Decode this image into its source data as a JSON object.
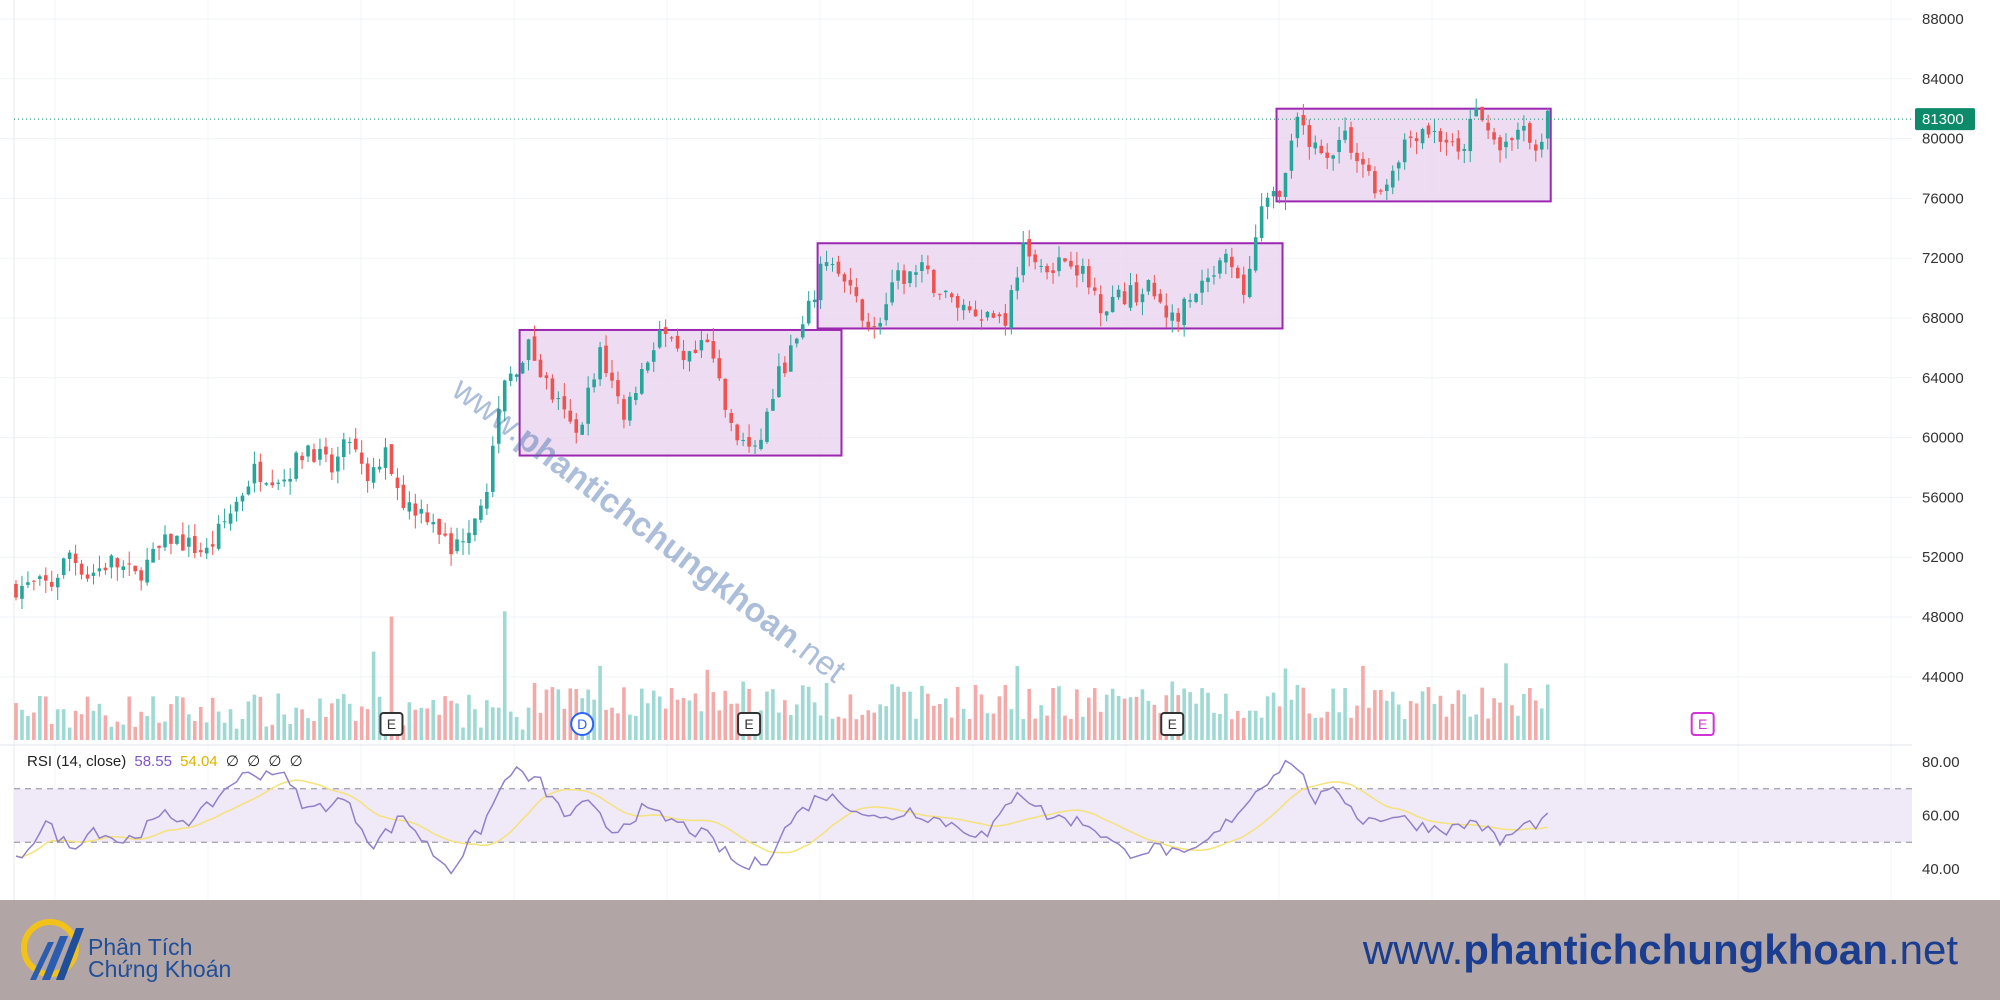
{
  "chart_data": {
    "type": "candlestick",
    "price_axis": {
      "ylim": [
        36000,
        89000
      ],
      "ticks": [
        88000,
        84000,
        80000,
        76000,
        72000,
        68000,
        64000,
        60000,
        56000,
        52000,
        48000,
        44000
      ]
    },
    "last_price": {
      "value": 81300,
      "label": "81300"
    },
    "rsi_axis": {
      "ylim": [
        33,
        84
      ],
      "ticks": [
        "80.00",
        "60.00",
        "40.00"
      ],
      "upper_band": 70,
      "lower_band": 50
    },
    "rsi_legend": {
      "name": "RSI (14, close)",
      "value": "58.55",
      "ma_value": "54.04",
      "extras": [
        "∅",
        "∅",
        "∅",
        "∅"
      ]
    },
    "event_markers": [
      {
        "label": "E",
        "bar": 63,
        "kind": "earnings"
      },
      {
        "label": "D",
        "bar": 95,
        "kind": "dividend"
      },
      {
        "label": "E",
        "bar": 123,
        "kind": "earnings"
      },
      {
        "label": "E",
        "bar": 194,
        "kind": "earnings"
      },
      {
        "label": "E",
        "bar": 283,
        "kind": "earnings-future"
      }
    ],
    "consolidation_boxes": [
      {
        "from_bar": 85,
        "to_bar": 138,
        "top": 67200,
        "bottom": 58800
      },
      {
        "from_bar": 135,
        "to_bar": 212,
        "top": 73000,
        "bottom": 67300
      },
      {
        "from_bar": 212,
        "to_bar": 257,
        "top": 82000,
        "bottom": 75800
      }
    ],
    "anchors": [
      [
        0,
        50000
      ],
      [
        6,
        50200
      ],
      [
        9,
        52300
      ],
      [
        12,
        50800
      ],
      [
        16,
        51700
      ],
      [
        20,
        50700
      ],
      [
        26,
        53300
      ],
      [
        32,
        52300
      ],
      [
        36,
        55000
      ],
      [
        40,
        57800
      ],
      [
        45,
        57300
      ],
      [
        49,
        59500
      ],
      [
        53,
        57800
      ],
      [
        56,
        59900
      ],
      [
        59,
        56800
      ],
      [
        62,
        58900
      ],
      [
        65,
        55700
      ],
      [
        70,
        54700
      ],
      [
        73,
        52200
      ],
      [
        77,
        54900
      ],
      [
        79,
        57000
      ],
      [
        82,
        63400
      ],
      [
        86,
        66100
      ],
      [
        90,
        62800
      ],
      [
        94,
        60100
      ],
      [
        98,
        65700
      ],
      [
        102,
        61600
      ],
      [
        108,
        67200
      ],
      [
        112,
        64800
      ],
      [
        116,
        66200
      ],
      [
        120,
        60500
      ],
      [
        124,
        58800
      ],
      [
        128,
        64200
      ],
      [
        132,
        67200
      ],
      [
        136,
        72200
      ],
      [
        140,
        69600
      ],
      [
        144,
        67100
      ],
      [
        148,
        70600
      ],
      [
        152,
        71100
      ],
      [
        156,
        69400
      ],
      [
        160,
        68600
      ],
      [
        166,
        68000
      ],
      [
        169,
        72800
      ],
      [
        172,
        71400
      ],
      [
        177,
        72100
      ],
      [
        182,
        69000
      ],
      [
        186,
        69500
      ],
      [
        190,
        69900
      ],
      [
        194,
        67900
      ],
      [
        198,
        69400
      ],
      [
        203,
        71800
      ],
      [
        206,
        69600
      ],
      [
        209,
        75000
      ],
      [
        213,
        77400
      ],
      [
        215,
        81200
      ],
      [
        219,
        78800
      ],
      [
        223,
        80200
      ],
      [
        226,
        78200
      ],
      [
        229,
        76400
      ],
      [
        233,
        79800
      ],
      [
        236,
        80800
      ],
      [
        240,
        79900
      ],
      [
        242,
        78700
      ],
      [
        245,
        81800
      ],
      [
        249,
        79200
      ],
      [
        252,
        81000
      ],
      [
        255,
        78900
      ],
      [
        257,
        81300
      ]
    ],
    "rsi_anchors": [
      [
        0,
        43
      ],
      [
        5,
        57
      ],
      [
        9,
        48
      ],
      [
        13,
        55
      ],
      [
        18,
        50
      ],
      [
        25,
        60
      ],
      [
        30,
        58
      ],
      [
        37,
        74
      ],
      [
        44,
        77
      ],
      [
        49,
        62
      ],
      [
        55,
        66
      ],
      [
        60,
        49
      ],
      [
        65,
        60
      ],
      [
        70,
        46
      ],
      [
        73,
        40
      ],
      [
        78,
        55
      ],
      [
        83,
        77
      ],
      [
        88,
        72
      ],
      [
        92,
        60
      ],
      [
        96,
        64
      ],
      [
        100,
        54
      ],
      [
        105,
        62
      ],
      [
        110,
        58
      ],
      [
        116,
        52
      ],
      [
        122,
        40
      ],
      [
        126,
        44
      ],
      [
        130,
        58
      ],
      [
        135,
        68
      ],
      [
        140,
        64
      ],
      [
        145,
        58
      ],
      [
        150,
        62
      ],
      [
        158,
        56
      ],
      [
        163,
        52
      ],
      [
        168,
        70
      ],
      [
        173,
        60
      ],
      [
        180,
        57
      ],
      [
        186,
        46
      ],
      [
        192,
        48
      ],
      [
        196,
        44
      ],
      [
        201,
        52
      ],
      [
        206,
        64
      ],
      [
        211,
        76
      ],
      [
        214,
        81
      ],
      [
        218,
        66
      ],
      [
        222,
        69
      ],
      [
        226,
        58
      ],
      [
        231,
        60
      ],
      [
        236,
        56
      ],
      [
        241,
        55
      ],
      [
        245,
        58
      ],
      [
        249,
        50
      ],
      [
        253,
        56
      ],
      [
        257,
        58.5
      ]
    ],
    "volume_spikes": [
      [
        60,
        0.68
      ],
      [
        63,
        0.95
      ],
      [
        82,
        0.99
      ],
      [
        98,
        0.57
      ],
      [
        116,
        0.54
      ],
      [
        122,
        0.45
      ],
      [
        168,
        0.57
      ],
      [
        194,
        0.45
      ],
      [
        213,
        0.55
      ],
      [
        226,
        0.57
      ],
      [
        250,
        0.59
      ]
    ],
    "colors": {
      "up": "#26a69a",
      "down": "#ef5350",
      "up_volume": "#9fd9d3",
      "down_volume": "#f4aaa8",
      "box_fill": "#e8d2ee",
      "box_stroke": "#9c27b0",
      "rsi_line": "#9280c8",
      "rsi_ma": "#f5e27a",
      "rsi_band_fill": "#efe9f8",
      "price_label_bg": "#0c8a6a",
      "marker_purple": "#d133d6"
    }
  },
  "footer": {
    "logo_line1": "Phân Tích",
    "logo_line2": "Chứng Khoán",
    "url_prefix": "www.",
    "url_bold": "phantichchungkhoan",
    "url_suffix": ".net"
  },
  "watermark": {
    "prefix": "www.",
    "bold": "phantichchungkhoan",
    "suffix": ".net"
  }
}
